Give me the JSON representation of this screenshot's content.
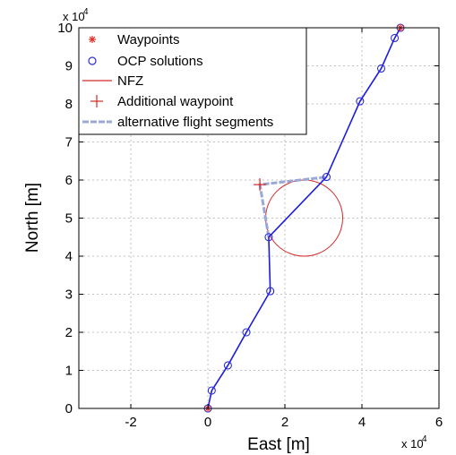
{
  "chart_data": {
    "type": "line",
    "xlabel": "East [m]",
    "ylabel": "North [m]",
    "x_exponent_label": "x 10",
    "x_exponent": "4",
    "y_exponent_label": "x 10",
    "y_exponent": "4",
    "xlim": [
      -3.35,
      6.0
    ],
    "ylim": [
      0,
      10
    ],
    "x_ticks": [
      -2,
      0,
      2,
      4,
      6
    ],
    "x_tick_labels": [
      "-2",
      "0",
      "2",
      "4",
      "6"
    ],
    "y_ticks": [
      0,
      1,
      2,
      3,
      4,
      5,
      6,
      7,
      8,
      9,
      10
    ],
    "y_tick_labels": [
      "0",
      "1",
      "2",
      "3",
      "4",
      "5",
      "6",
      "7",
      "8",
      "9",
      "10"
    ],
    "grid": true,
    "legend_position": "top-left",
    "legend": [
      {
        "label": "Waypoints",
        "marker": "asterisk",
        "color": "#e0302a"
      },
      {
        "label": "OCP solutions",
        "marker": "circle",
        "color": "#2b2bd8"
      },
      {
        "label": "NFZ",
        "marker": "line",
        "color": "#d62828"
      },
      {
        "label": "Additional waypoint",
        "marker": "plus",
        "color": "#d62828"
      },
      {
        "label": "alternative flight segments",
        "marker": "line",
        "color": "#9aa8d8"
      }
    ],
    "series": [
      {
        "name": "Waypoints",
        "color": "#e0302a",
        "points": [
          [
            0,
            0
          ],
          [
            5.0,
            10.0
          ]
        ]
      },
      {
        "name": "OCP solutions",
        "color": "#2b2bd8",
        "points": [
          [
            0,
            0
          ],
          [
            0.1,
            0.47
          ],
          [
            0.52,
            1.13
          ],
          [
            1.0,
            2.0
          ],
          [
            1.62,
            3.08
          ],
          [
            1.58,
            4.5
          ],
          [
            3.08,
            6.08
          ],
          [
            3.95,
            8.07
          ],
          [
            4.5,
            8.93
          ],
          [
            4.85,
            9.73
          ],
          [
            5.0,
            10.0
          ]
        ]
      },
      {
        "name": "NFZ",
        "color": "#d62828",
        "circle": {
          "center": [
            2.5,
            5.0
          ],
          "radius": 1.0
        }
      },
      {
        "name": "Additional waypoint",
        "color": "#d62828",
        "points": [
          [
            1.35,
            5.88
          ]
        ]
      },
      {
        "name": "alternative flight segments",
        "color": "#9aa8d8",
        "points": [
          [
            1.58,
            4.5
          ],
          [
            1.35,
            5.88
          ],
          [
            3.08,
            6.08
          ]
        ]
      }
    ]
  }
}
